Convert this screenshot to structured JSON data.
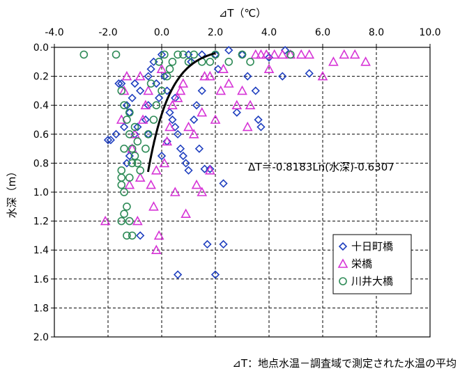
{
  "chart_data": {
    "type": "scatter",
    "xlabel": "⊿T（℃）",
    "ylabel": "水深（m）",
    "xlim": [
      -4.0,
      10.0
    ],
    "ylim": [
      0.0,
      2.0
    ],
    "y_inverted": true,
    "x_axis_position": "top",
    "xticks": [
      "-4.0",
      "-2.0",
      "0.0",
      "2.0",
      "4.0",
      "6.0",
      "8.0",
      "10.0"
    ],
    "yticks": [
      "0.0",
      "0.2",
      "0.4",
      "0.6",
      "0.8",
      "1.0",
      "1.2",
      "1.4",
      "1.6",
      "1.8",
      "2.0"
    ],
    "grid": true,
    "legend_position": "bottom-right",
    "annotation": "ΔT＝-0.8183Ln(水深)-0.6307",
    "footnote": "⊿T：地点水温－調査域で測定された水温の平均",
    "trendline": {
      "a": -0.8183,
      "b": -0.6307,
      "depth_min": 0.04,
      "depth_max": 0.86
    },
    "series": [
      {
        "name": "十日町橋",
        "marker": "diamond",
        "color": "#1f3fbf",
        "points": [
          [
            -2.0,
            0.64
          ],
          [
            -1.9,
            0.64
          ],
          [
            -1.7,
            0.6
          ],
          [
            -1.6,
            0.25
          ],
          [
            -1.5,
            0.25
          ],
          [
            -1.4,
            0.55
          ],
          [
            -1.3,
            0.4
          ],
          [
            -1.2,
            0.45
          ],
          [
            -1.1,
            0.35
          ],
          [
            -1.0,
            0.6
          ],
          [
            -0.9,
            0.55
          ],
          [
            -0.8,
            0.3
          ],
          [
            -0.6,
            0.5
          ],
          [
            -0.5,
            0.2
          ],
          [
            -0.4,
            0.15
          ],
          [
            -0.3,
            0.1
          ],
          [
            -0.2,
            0.25
          ],
          [
            -0.1,
            0.35
          ],
          [
            0.0,
            0.05
          ],
          [
            0.1,
            0.2
          ],
          [
            0.2,
            0.3
          ],
          [
            0.3,
            0.45
          ],
          [
            0.4,
            0.5
          ],
          [
            0.5,
            0.55
          ],
          [
            0.6,
            0.6
          ],
          [
            0.7,
            0.7
          ],
          [
            0.8,
            0.75
          ],
          [
            0.9,
            0.8
          ],
          [
            1.0,
            0.85
          ],
          [
            1.2,
            0.5
          ],
          [
            1.3,
            0.4
          ],
          [
            1.5,
            0.3
          ],
          [
            1.6,
            0.84
          ],
          [
            1.8,
            0.84
          ],
          [
            1.7,
            1.36
          ],
          [
            2.3,
            1.36
          ],
          [
            2.3,
            0.94
          ],
          [
            2.0,
            1.57
          ],
          [
            0.6,
            1.57
          ],
          [
            1.0,
            0.05
          ],
          [
            1.5,
            0.05
          ],
          [
            2.0,
            0.05
          ],
          [
            2.5,
            0.02
          ],
          [
            3.0,
            0.05
          ],
          [
            3.5,
            0.3
          ],
          [
            3.6,
            0.5
          ],
          [
            3.7,
            0.55
          ],
          [
            4.0,
            0.07
          ],
          [
            4.5,
            0.2
          ],
          [
            4.6,
            0.02
          ],
          [
            5.5,
            0.18
          ],
          [
            3.2,
            0.2
          ],
          [
            2.8,
            0.45
          ],
          [
            -1.3,
            0.8
          ],
          [
            -1.2,
            0.75
          ],
          [
            -0.5,
            0.6
          ],
          [
            0.2,
            0.65
          ],
          [
            1.4,
            0.7
          ],
          [
            -0.8,
            1.3
          ],
          [
            0.0,
            0.75
          ],
          [
            -0.5,
            0.4
          ],
          [
            -1.0,
            0.25
          ],
          [
            2.1,
            0.15
          ],
          [
            1.1,
            0.1
          ],
          [
            0.5,
            0.35
          ]
        ]
      },
      {
        "name": "栄橋",
        "marker": "triangle",
        "color": "#d633d6",
        "points": [
          [
            -2.1,
            1.2
          ],
          [
            -1.5,
            0.5
          ],
          [
            -1.4,
            0.3
          ],
          [
            -1.3,
            0.2
          ],
          [
            -1.2,
            0.95
          ],
          [
            -1.1,
            0.7
          ],
          [
            -1.0,
            0.6
          ],
          [
            -0.9,
            1.2
          ],
          [
            -0.8,
            0.9
          ],
          [
            -0.7,
            0.5
          ],
          [
            -0.6,
            0.4
          ],
          [
            -0.5,
            0.3
          ],
          [
            -0.4,
            0.95
          ],
          [
            -0.3,
            1.1
          ],
          [
            -0.2,
            1.4
          ],
          [
            -0.1,
            1.3
          ],
          [
            0.0,
            0.15
          ],
          [
            0.1,
            0.8
          ],
          [
            0.2,
            0.65
          ],
          [
            0.3,
            0.55
          ],
          [
            0.4,
            0.4
          ],
          [
            0.6,
            0.35
          ],
          [
            0.7,
            0.3
          ],
          [
            0.8,
            0.25
          ],
          [
            1.0,
            0.55
          ],
          [
            1.2,
            0.6
          ],
          [
            1.5,
            0.45
          ],
          [
            1.6,
            0.2
          ],
          [
            1.8,
            0.2
          ],
          [
            2.0,
            0.5
          ],
          [
            2.2,
            0.3
          ],
          [
            2.5,
            0.25
          ],
          [
            2.8,
            0.4
          ],
          [
            3.0,
            0.3
          ],
          [
            3.2,
            0.55
          ],
          [
            3.5,
            0.05
          ],
          [
            3.7,
            0.05
          ],
          [
            3.9,
            0.05
          ],
          [
            4.2,
            0.05
          ],
          [
            4.5,
            0.05
          ],
          [
            4.8,
            0.05
          ],
          [
            5.2,
            0.05
          ],
          [
            5.5,
            0.05
          ],
          [
            6.0,
            0.2
          ],
          [
            6.4,
            0.1
          ],
          [
            6.8,
            0.05
          ],
          [
            7.2,
            0.05
          ],
          [
            7.6,
            0.1
          ],
          [
            1.5,
            1.0
          ],
          [
            1.8,
            0.85
          ],
          [
            0.5,
            1.0
          ],
          [
            2.3,
            0.15
          ],
          [
            1.3,
            0.95
          ],
          [
            0.9,
            1.15
          ],
          [
            -0.2,
            0.85
          ],
          [
            3.3,
            0.4
          ],
          [
            -0.8,
            0.2
          ],
          [
            4.0,
            0.15
          ]
        ]
      },
      {
        "name": "川井大橋",
        "marker": "circle",
        "color": "#2e8b57",
        "points": [
          [
            -2.9,
            0.05
          ],
          [
            -1.7,
            0.05
          ],
          [
            -1.5,
            0.3
          ],
          [
            -1.4,
            0.4
          ],
          [
            -1.3,
            0.5
          ],
          [
            -1.2,
            0.6
          ],
          [
            -1.1,
            0.7
          ],
          [
            -1.0,
            0.75
          ],
          [
            -0.9,
            0.8
          ],
          [
            -0.8,
            0.85
          ],
          [
            -1.5,
            0.85
          ],
          [
            -1.5,
            0.9
          ],
          [
            -1.4,
            1.0
          ],
          [
            -1.3,
            1.1
          ],
          [
            -1.2,
            1.2
          ],
          [
            -1.1,
            1.3
          ],
          [
            -1.5,
            1.2
          ],
          [
            -1.3,
            1.3
          ],
          [
            -1.4,
            1.15
          ],
          [
            -1.2,
            0.9
          ],
          [
            -0.5,
            0.6
          ],
          [
            -0.3,
            0.5
          ],
          [
            -0.2,
            0.4
          ],
          [
            0.0,
            0.3
          ],
          [
            0.2,
            0.2
          ],
          [
            0.4,
            0.1
          ],
          [
            0.6,
            0.05
          ],
          [
            0.8,
            0.05
          ],
          [
            1.0,
            0.1
          ],
          [
            1.2,
            0.05
          ],
          [
            1.5,
            0.1
          ],
          [
            2.0,
            0.05
          ],
          [
            2.5,
            0.1
          ],
          [
            3.0,
            0.05
          ],
          [
            3.3,
            0.1
          ],
          [
            4.8,
            0.05
          ],
          [
            -0.1,
            0.1
          ],
          [
            0.3,
            0.15
          ],
          [
            -0.6,
            0.7
          ],
          [
            -0.9,
            0.65
          ],
          [
            -1.0,
            0.55
          ],
          [
            -1.4,
            0.7
          ],
          [
            -1.2,
            0.45
          ],
          [
            -0.4,
            0.25
          ],
          [
            0.1,
            0.05
          ],
          [
            1.8,
            0.1
          ],
          [
            -1.5,
            0.95
          ],
          [
            -1.1,
            0.8
          ]
        ]
      }
    ]
  }
}
